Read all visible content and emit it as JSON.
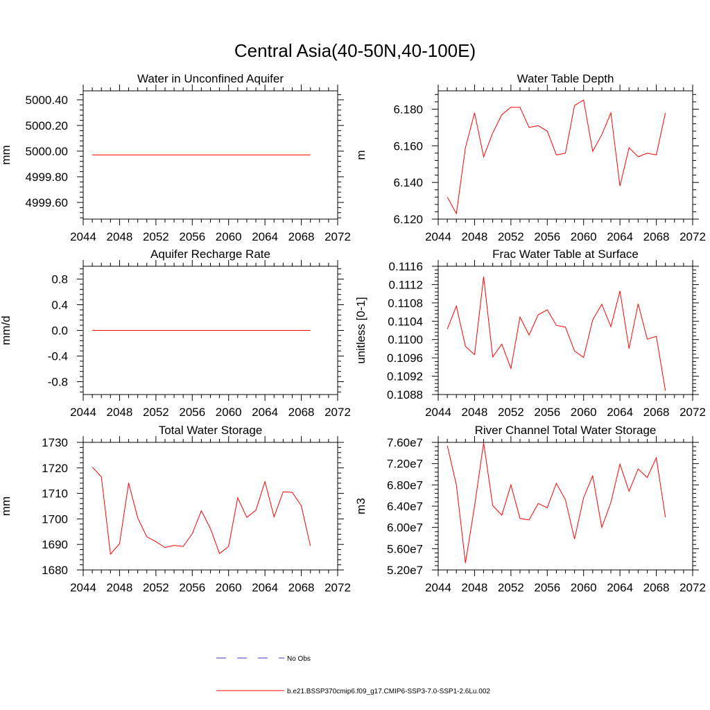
{
  "figure": {
    "title": "Central Asia(40-50N,40-100E)",
    "legend": {
      "obs_label": "No Obs",
      "model_label": "b.e21.BSSP370cmip6.f09_g17.CMIP6-SSP3-7.0-SSP1-2.6Lu.002",
      "obs_color": "#3a3ad0",
      "model_color": "#ff0000"
    }
  },
  "chart_data": [
    {
      "type": "line",
      "title": "Water in Unconfined Aquifer",
      "ylabel": "mm",
      "xlim": [
        2044,
        2072
      ],
      "ylim": [
        4999.47,
        5000.47
      ],
      "xticks": [
        2044,
        2048,
        2052,
        2056,
        2060,
        2064,
        2068,
        2072
      ],
      "yticks": [
        4999.6,
        4999.8,
        5000.0,
        5000.2,
        5000.4
      ],
      "ytick_decimals": 2,
      "x": [
        2045,
        2046,
        2047,
        2048,
        2049,
        2050,
        2051,
        2052,
        2053,
        2054,
        2055,
        2056,
        2057,
        2058,
        2059,
        2060,
        2061,
        2062,
        2063,
        2064,
        2065,
        2066,
        2067,
        2068,
        2069
      ],
      "series": [
        {
          "values": [
            4999.97,
            4999.97,
            4999.97,
            4999.97,
            4999.97,
            4999.97,
            4999.97,
            4999.97,
            4999.97,
            4999.97,
            4999.97,
            4999.97,
            4999.97,
            4999.97,
            4999.97,
            4999.97,
            4999.97,
            4999.97,
            4999.97,
            4999.97,
            4999.97,
            4999.97,
            4999.97,
            4999.97,
            4999.97
          ]
        }
      ]
    },
    {
      "type": "line",
      "title": "Water Table Depth",
      "ylabel": "m",
      "xlim": [
        2044,
        2072
      ],
      "ylim": [
        6.12,
        6.19
      ],
      "xticks": [
        2044,
        2048,
        2052,
        2056,
        2060,
        2064,
        2068,
        2072
      ],
      "yticks": [
        6.12,
        6.14,
        6.16,
        6.18
      ],
      "ytick_decimals": 3,
      "x": [
        2045,
        2046,
        2047,
        2048,
        2049,
        2050,
        2051,
        2052,
        2053,
        2054,
        2055,
        2056,
        2057,
        2058,
        2059,
        2060,
        2061,
        2062,
        2063,
        2064,
        2065,
        2066,
        2067,
        2068,
        2069
      ],
      "series": [
        {
          "values": [
            6.132,
            6.123,
            6.159,
            6.178,
            6.154,
            6.167,
            6.177,
            6.181,
            6.181,
            6.17,
            6.171,
            6.168,
            6.155,
            6.156,
            6.182,
            6.185,
            6.157,
            6.166,
            6.178,
            6.138,
            6.159,
            6.154,
            6.156,
            6.155,
            6.178
          ]
        }
      ]
    },
    {
      "type": "line",
      "title": "Aquifer Recharge Rate",
      "ylabel": "mm/d",
      "xlim": [
        2044,
        2072
      ],
      "ylim": [
        -1.0,
        1.0
      ],
      "xticks": [
        2044,
        2048,
        2052,
        2056,
        2060,
        2064,
        2068,
        2072
      ],
      "yticks": [
        -0.8,
        -0.4,
        0.0,
        0.4,
        0.8
      ],
      "ytick_decimals": 1,
      "x": [
        2045,
        2046,
        2047,
        2048,
        2049,
        2050,
        2051,
        2052,
        2053,
        2054,
        2055,
        2056,
        2057,
        2058,
        2059,
        2060,
        2061,
        2062,
        2063,
        2064,
        2065,
        2066,
        2067,
        2068,
        2069
      ],
      "series": [
        {
          "values": [
            0,
            0,
            0,
            0,
            0,
            0,
            0,
            0,
            0,
            0,
            0,
            0,
            0,
            0,
            0,
            0,
            0,
            0,
            0,
            0,
            0,
            0,
            0,
            0,
            0
          ]
        }
      ]
    },
    {
      "type": "line",
      "title": "Frac Water Table at Surface",
      "ylabel": "unitless [0-1]",
      "xlim": [
        2044,
        2072
      ],
      "ylim": [
        0.1088,
        0.1116
      ],
      "xticks": [
        2044,
        2048,
        2052,
        2056,
        2060,
        2064,
        2068,
        2072
      ],
      "yticks": [
        0.1088,
        0.1092,
        0.1096,
        0.11,
        0.1104,
        0.1108,
        0.1112,
        0.1116
      ],
      "ytick_decimals": 4,
      "x": [
        2045,
        2046,
        2047,
        2048,
        2049,
        2050,
        2051,
        2052,
        2053,
        2054,
        2055,
        2056,
        2057,
        2058,
        2059,
        2060,
        2061,
        2062,
        2063,
        2064,
        2065,
        2066,
        2067,
        2068,
        2069
      ],
      "series": [
        {
          "values": [
            0.11023,
            0.11073,
            0.10985,
            0.10967,
            0.11137,
            0.10962,
            0.1099,
            0.10937,
            0.11049,
            0.1101,
            0.11054,
            0.11065,
            0.11031,
            0.11027,
            0.10975,
            0.10961,
            0.11043,
            0.11077,
            0.11028,
            0.11106,
            0.1098,
            0.11078,
            0.11001,
            0.11007,
            0.10888
          ]
        }
      ]
    },
    {
      "type": "line",
      "title": "Total Water Storage",
      "ylabel": "mm",
      "xlim": [
        2044,
        2072
      ],
      "ylim": [
        1680,
        1730
      ],
      "xticks": [
        2044,
        2048,
        2052,
        2056,
        2060,
        2064,
        2068,
        2072
      ],
      "yticks": [
        1680,
        1690,
        1700,
        1710,
        1720,
        1730
      ],
      "ytick_decimals": 0,
      "x": [
        2045,
        2046,
        2047,
        2048,
        2049,
        2050,
        2051,
        2052,
        2053,
        2054,
        2055,
        2056,
        2057,
        2058,
        2059,
        2060,
        2061,
        2062,
        2063,
        2064,
        2065,
        2066,
        2067,
        2068,
        2069
      ],
      "series": [
        {
          "values": [
            1720.3,
            1716.5,
            1686.2,
            1690.3,
            1714.1,
            1700.4,
            1693,
            1691.1,
            1688.8,
            1689.6,
            1689.2,
            1694.2,
            1703.2,
            1696.2,
            1686.4,
            1689.2,
            1708.3,
            1700.6,
            1703.4,
            1714.6,
            1700.8,
            1710.6,
            1710.4,
            1705.1,
            1689.4
          ]
        }
      ]
    },
    {
      "type": "line",
      "title": "River Channel Total Water Storage",
      "ylabel": "m3",
      "xlim": [
        2044,
        2072
      ],
      "ylim": [
        52000000,
        76000000
      ],
      "xticks": [
        2044,
        2048,
        2052,
        2056,
        2060,
        2064,
        2068,
        2072
      ],
      "yticks": [
        52000000,
        56000000,
        60000000,
        64000000,
        68000000,
        72000000,
        76000000
      ],
      "ytick_labels": [
        "5.20e7",
        "5.60e7",
        "6.00e7",
        "6.40e7",
        "6.80e7",
        "7.20e7",
        "7.60e7"
      ],
      "ytick_decimals": 2,
      "x": [
        2045,
        2046,
        2047,
        2048,
        2049,
        2050,
        2051,
        2052,
        2053,
        2054,
        2055,
        2056,
        2057,
        2058,
        2059,
        2060,
        2061,
        2062,
        2063,
        2064,
        2065,
        2066,
        2067,
        2068,
        2069
      ],
      "series": [
        {
          "values": [
            75400000,
            68000000,
            53300000,
            64000000,
            75900000,
            64100000,
            62300000,
            68000000,
            61700000,
            61400000,
            64500000,
            63700000,
            68300000,
            65200000,
            57800000,
            65600000,
            69700000,
            60000000,
            64700000,
            71900000,
            66800000,
            71000000,
            69400000,
            73100000,
            61900000
          ]
        }
      ]
    }
  ]
}
